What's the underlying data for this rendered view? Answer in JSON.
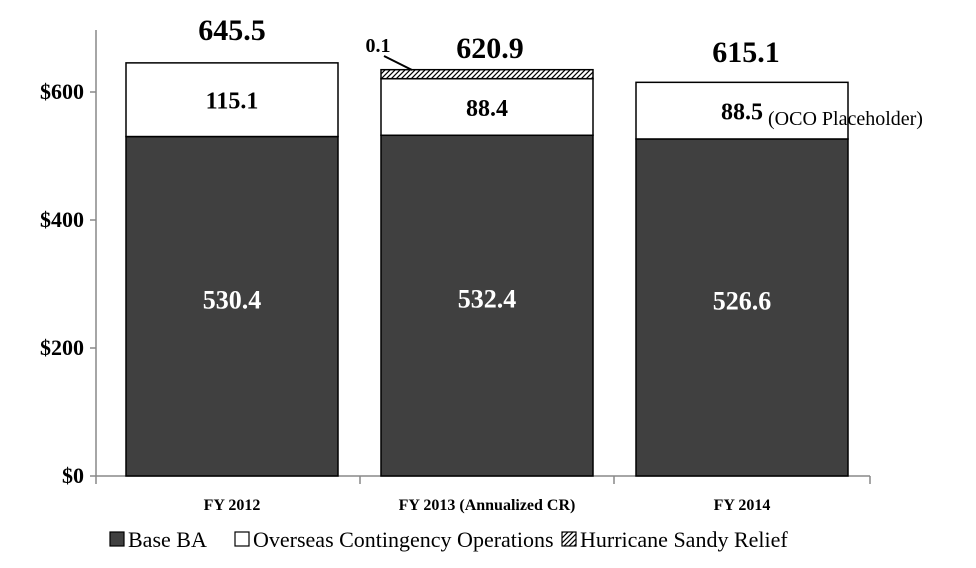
{
  "chart_data": {
    "type": "bar",
    "stacked": true,
    "categories": [
      "FY 2012",
      "FY 2013 (Annualized CR)",
      "FY 2014"
    ],
    "series": [
      {
        "name": "Base BA",
        "values": [
          530.4,
          532.4,
          526.6
        ],
        "color": "#404040"
      },
      {
        "name": "Overseas Contingency Operations",
        "values": [
          115.1,
          88.4,
          88.5
        ],
        "color": "#ffffff"
      },
      {
        "name": "Hurricane Sandy Relief",
        "values": [
          0,
          0.1,
          0
        ],
        "color": "hatched"
      }
    ],
    "segment_labels": [
      [
        "530.4",
        "532.4",
        "526.6"
      ],
      [
        "115.1",
        "88.4",
        "88.5"
      ],
      [
        "",
        "0.1",
        ""
      ]
    ],
    "totals": [
      "645.5",
      "620.9",
      "615.1"
    ],
    "annotation": "(OCO Placeholder)",
    "y_ticks": [
      "$0",
      "$200",
      "$400",
      "$600"
    ],
    "y_tick_values": [
      0,
      200,
      400,
      600
    ],
    "ylim": [
      0,
      700
    ],
    "grid": false,
    "legend_position": "bottom"
  }
}
